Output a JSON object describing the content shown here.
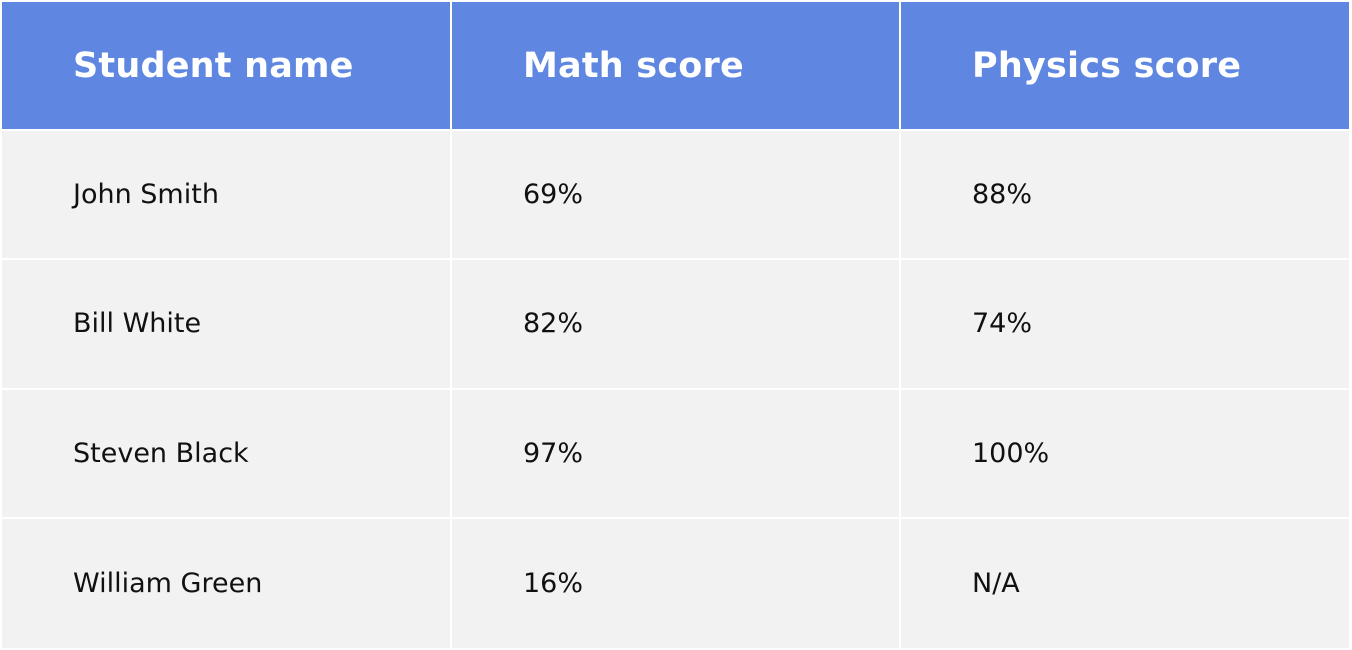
{
  "table": {
    "headers": [
      "Student name",
      "Math score",
      "Physics score"
    ],
    "rows": [
      [
        "John Smith",
        "69%",
        "88%"
      ],
      [
        "Bill White",
        "82%",
        "74%"
      ],
      [
        "Steven Black",
        "97%",
        "100%"
      ],
      [
        "William Green",
        "16%",
        "N/A"
      ]
    ]
  },
  "colors": {
    "header_bg": "#5f86e0",
    "header_text": "#ffffff",
    "cell_bg": "#f2f2f2",
    "cell_text": "#111111"
  }
}
